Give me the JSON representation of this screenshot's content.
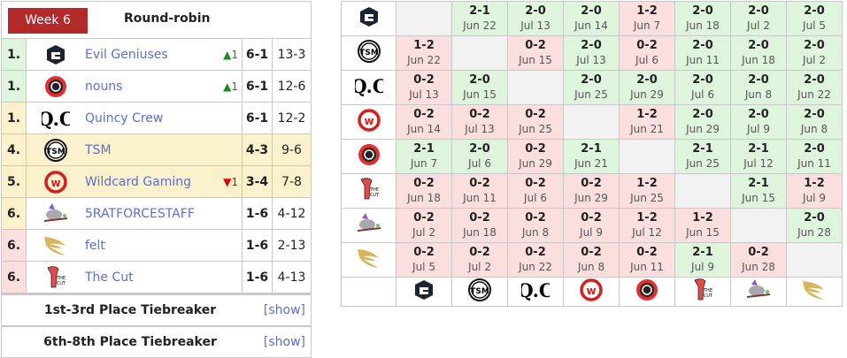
{
  "header": {
    "week": "Week 6",
    "title": "Round-robin"
  },
  "colors": {
    "week_badge": "#b22a2a",
    "win": "#dff4dc",
    "loss": "#fbdede",
    "advance": "#fbf1cc",
    "link": "#5a6fcf",
    "up": "#1a8a1a",
    "down": "#e00000"
  },
  "standings": [
    {
      "rank": "1.",
      "logo": "eg",
      "name": "Evil Geniuses",
      "change": "▲1",
      "dir": "up",
      "record": "6-1",
      "games": "13-3",
      "rank_bg": "g",
      "row_bg": ""
    },
    {
      "rank": "1.",
      "logo": "nouns",
      "name": "nouns",
      "change": "▲1",
      "dir": "up",
      "record": "6-1",
      "games": "12-6",
      "rank_bg": "g",
      "row_bg": ""
    },
    {
      "rank": "1.",
      "logo": "qc",
      "name": "Quincy Crew",
      "change": "",
      "dir": "",
      "record": "6-1",
      "games": "12-2",
      "rank_bg": "y",
      "row_bg": ""
    },
    {
      "rank": "4.",
      "logo": "tsm",
      "name": "TSM",
      "change": "",
      "dir": "",
      "record": "4-3",
      "games": "9-6",
      "rank_bg": "y",
      "row_bg": "y"
    },
    {
      "rank": "5.",
      "logo": "wg",
      "name": "Wildcard Gaming",
      "change": "▼1",
      "dir": "down",
      "record": "3-4",
      "games": "7-8",
      "rank_bg": "y",
      "row_bg": "y"
    },
    {
      "rank": "6.",
      "logo": "rat",
      "name": "5RATFORCESTAFF",
      "change": "",
      "dir": "",
      "record": "1-6",
      "games": "4-12",
      "rank_bg": "y",
      "row_bg": ""
    },
    {
      "rank": "6.",
      "logo": "felt",
      "name": "felt",
      "change": "",
      "dir": "",
      "record": "1-6",
      "games": "2-13",
      "rank_bg": "p",
      "row_bg": ""
    },
    {
      "rank": "6.",
      "logo": "cut",
      "name": "The Cut",
      "change": "",
      "dir": "",
      "record": "1-6",
      "games": "4-13",
      "rank_bg": "p",
      "row_bg": ""
    }
  ],
  "tiebreakers": [
    {
      "title": "1st-3rd Place Tiebreaker",
      "toggle": "[show]"
    },
    {
      "title": "6th-8th Place Tiebreaker",
      "toggle": "[show]"
    }
  ],
  "matrix": {
    "teams": [
      "eg",
      "tsm",
      "qc",
      "wg",
      "nouns",
      "cut",
      "rat",
      "felt"
    ],
    "rows": [
      [
        null,
        [
          "2-1",
          "Jun 22"
        ],
        [
          "2-0",
          "Jul 13"
        ],
        [
          "2-0",
          "Jun 14"
        ],
        [
          "1-2",
          "Jun 7"
        ],
        [
          "2-0",
          "Jun 18"
        ],
        [
          "2-0",
          "Jul 2"
        ],
        [
          "2-0",
          "Jul 5"
        ]
      ],
      [
        [
          "1-2",
          "Jun 22"
        ],
        null,
        [
          "0-2",
          "Jun 15"
        ],
        [
          "2-0",
          "Jul 13"
        ],
        [
          "0-2",
          "Jul 6"
        ],
        [
          "2-0",
          "Jun 11"
        ],
        [
          "2-0",
          "Jun 18"
        ],
        [
          "2-0",
          "Jul 2"
        ]
      ],
      [
        [
          "0-2",
          "Jul 13"
        ],
        [
          "2-0",
          "Jun 15"
        ],
        null,
        [
          "2-0",
          "Jun 25"
        ],
        [
          "2-0",
          "Jun 29"
        ],
        [
          "2-0",
          "Jul 6"
        ],
        [
          "2-0",
          "Jun 8"
        ],
        [
          "2-0",
          "Jun 22"
        ]
      ],
      [
        [
          "0-2",
          "Jun 14"
        ],
        [
          "0-2",
          "Jul 13"
        ],
        [
          "0-2",
          "Jun 25"
        ],
        null,
        [
          "1-2",
          "Jun 21"
        ],
        [
          "2-0",
          "Jun 29"
        ],
        [
          "2-0",
          "Jul 9"
        ],
        [
          "2-0",
          "Jun 8"
        ]
      ],
      [
        [
          "2-1",
          "Jun 7"
        ],
        [
          "2-0",
          "Jul 6"
        ],
        [
          "0-2",
          "Jun 29"
        ],
        [
          "2-1",
          "Jun 21"
        ],
        null,
        [
          "2-1",
          "Jun 25"
        ],
        [
          "2-1",
          "Jul 12"
        ],
        [
          "2-0",
          "Jun 11"
        ]
      ],
      [
        [
          "0-2",
          "Jun 18"
        ],
        [
          "0-2",
          "Jun 11"
        ],
        [
          "0-2",
          "Jul 6"
        ],
        [
          "0-2",
          "Jun 29"
        ],
        [
          "1-2",
          "Jun 25"
        ],
        null,
        [
          "2-1",
          "Jun 15"
        ],
        [
          "1-2",
          "Jul 9"
        ]
      ],
      [
        [
          "0-2",
          "Jul 2"
        ],
        [
          "0-2",
          "Jun 18"
        ],
        [
          "0-2",
          "Jun 8"
        ],
        [
          "0-2",
          "Jul 9"
        ],
        [
          "1-2",
          "Jul 12"
        ],
        [
          "1-2",
          "Jun 15"
        ],
        null,
        [
          "2-0",
          "Jun 28"
        ]
      ],
      [
        [
          "0-2",
          "Jul 5"
        ],
        [
          "0-2",
          "Jul 2"
        ],
        [
          "0-2",
          "Jun 22"
        ],
        [
          "0-2",
          "Jun 8"
        ],
        [
          "0-2",
          "Jun 11"
        ],
        [
          "2-1",
          "Jul 9"
        ],
        [
          "0-2",
          "Jun 28"
        ],
        null
      ]
    ]
  }
}
